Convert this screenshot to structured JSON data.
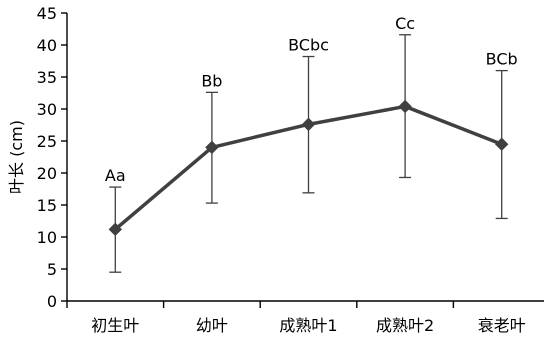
{
  "chart_data": {
    "type": "line",
    "categories": [
      "初生叶",
      "幼叶",
      "成熟叶1",
      "成熟叶2",
      "衰老叶"
    ],
    "values": [
      11.2,
      24.0,
      27.6,
      30.4,
      24.5
    ],
    "error_low": [
      4.5,
      15.3,
      16.9,
      19.3,
      12.9
    ],
    "error_high": [
      17.8,
      32.6,
      38.2,
      41.6,
      36.0
    ],
    "significance_labels": [
      "Aa",
      "Bb",
      "BCbc",
      "Cc",
      "BCb"
    ],
    "ylabel": "叶长 (cm)",
    "xlabel": "",
    "title": "",
    "ylim": [
      0,
      45
    ],
    "yticks": [
      "0",
      "5",
      "10",
      "15",
      "20",
      "25",
      "30",
      "35",
      "40",
      "45"
    ],
    "grid": false,
    "line_color": "#404040",
    "marker": "diamond"
  }
}
